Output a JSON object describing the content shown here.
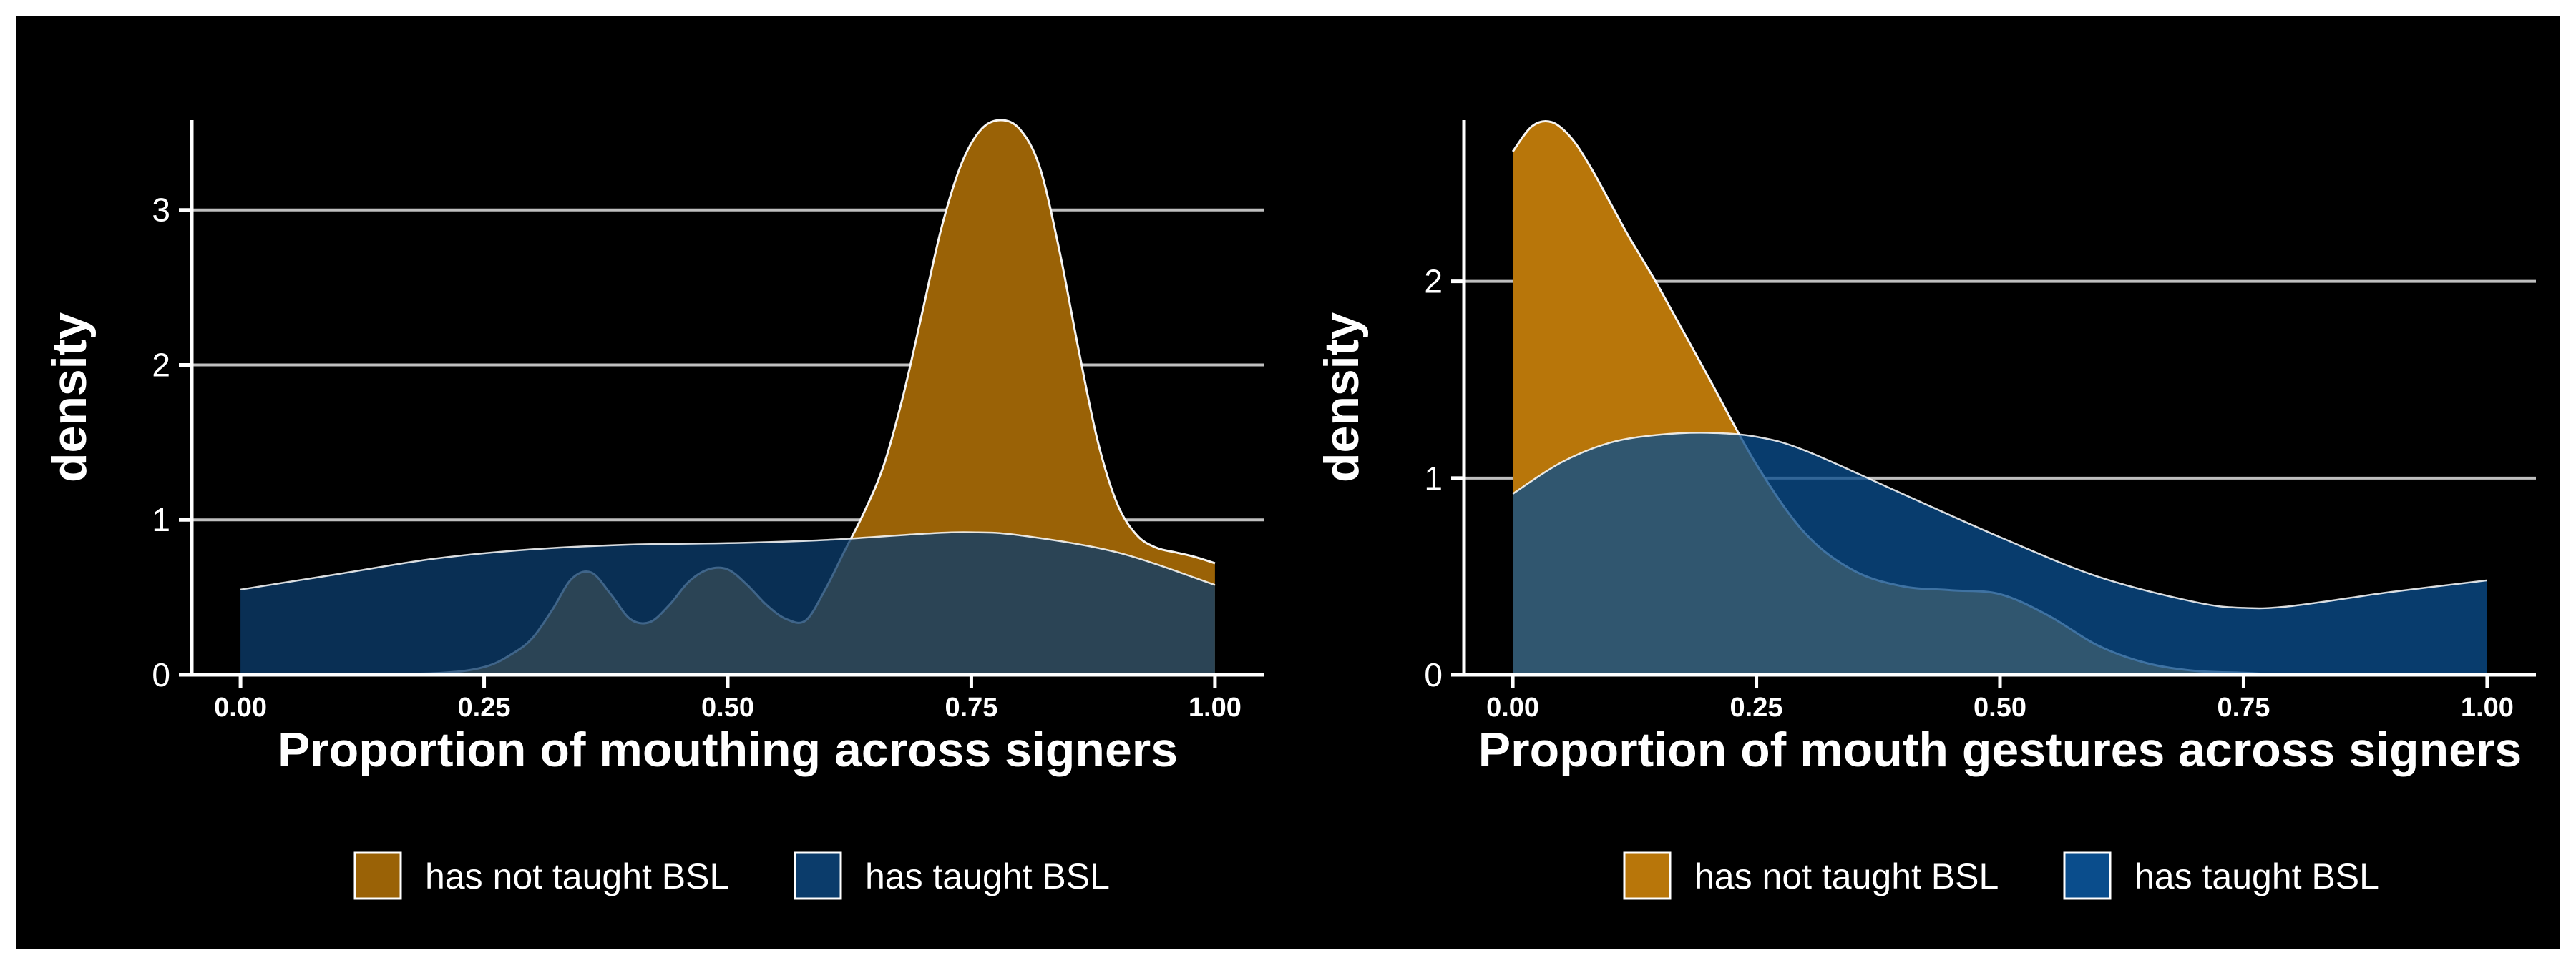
{
  "colors": {
    "frame": "#ffffff",
    "background": "#000000",
    "grid": "#bfbfbf",
    "axis": "#ffffff",
    "text": "#ffffff"
  },
  "chart_data": [
    {
      "type": "area",
      "subtype": "density",
      "xlabel": "Proportion of mouthing across signers",
      "ylabel": "density",
      "xlim": [
        -0.05,
        1.05
      ],
      "ylim": [
        0,
        3.58
      ],
      "xticks": [
        0,
        0.25,
        0.5,
        0.75,
        1
      ],
      "xtick_labels": [
        "0.00",
        "0.25",
        "0.50",
        "0.75",
        "1.00"
      ],
      "yticks": [
        0,
        1,
        2,
        3
      ],
      "ytick_labels": [
        "0",
        "1",
        "2",
        "3"
      ],
      "grid": "horizontal",
      "legend_position": "bottom",
      "series": [
        {
          "name": "has not taught BSL",
          "color": "#9a6206",
          "x": [
            0,
            0.1,
            0.2,
            0.25,
            0.28,
            0.3,
            0.32,
            0.34,
            0.36,
            0.38,
            0.4,
            0.42,
            0.44,
            0.46,
            0.48,
            0.5,
            0.52,
            0.54,
            0.56,
            0.58,
            0.6,
            0.62,
            0.64,
            0.66,
            0.68,
            0.7,
            0.72,
            0.74,
            0.76,
            0.78,
            0.8,
            0.82,
            0.84,
            0.86,
            0.88,
            0.9,
            0.92,
            0.94,
            0.96,
            0.98,
            1.0
          ],
          "values": [
            0,
            0,
            0.01,
            0.05,
            0.14,
            0.24,
            0.42,
            0.62,
            0.66,
            0.52,
            0.36,
            0.34,
            0.45,
            0.6,
            0.68,
            0.68,
            0.58,
            0.45,
            0.36,
            0.35,
            0.55,
            0.8,
            1.05,
            1.35,
            1.8,
            2.35,
            2.9,
            3.3,
            3.52,
            3.58,
            3.52,
            3.28,
            2.75,
            2.1,
            1.5,
            1.1,
            0.9,
            0.82,
            0.79,
            0.76,
            0.72
          ]
        },
        {
          "name": "has taught BSL",
          "color": "#0b3c6b",
          "x": [
            0,
            0.1,
            0.2,
            0.3,
            0.4,
            0.5,
            0.6,
            0.7,
            0.75,
            0.8,
            0.9,
            1.0
          ],
          "values": [
            0.55,
            0.65,
            0.75,
            0.81,
            0.84,
            0.85,
            0.87,
            0.91,
            0.92,
            0.9,
            0.79,
            0.58
          ]
        }
      ]
    },
    {
      "type": "area",
      "subtype": "density",
      "xlabel": "Proportion of mouth gestures across signers",
      "ylabel": "density",
      "xlim": [
        -0.05,
        1.05
      ],
      "ylim": [
        0,
        2.82
      ],
      "xticks": [
        0,
        0.25,
        0.5,
        0.75,
        1
      ],
      "xtick_labels": [
        "0.00",
        "0.25",
        "0.50",
        "0.75",
        "1.00"
      ],
      "yticks": [
        0,
        1,
        2
      ],
      "ytick_labels": [
        "0",
        "1",
        "2"
      ],
      "grid": "horizontal",
      "legend_position": "bottom",
      "series": [
        {
          "name": "has not taught BSL",
          "color": "#b8760a",
          "x": [
            0,
            0.02,
            0.04,
            0.06,
            0.08,
            0.1,
            0.12,
            0.15,
            0.2,
            0.25,
            0.3,
            0.35,
            0.4,
            0.45,
            0.5,
            0.55,
            0.6,
            0.65,
            0.7,
            0.75,
            0.8,
            0.9,
            1.0
          ],
          "values": [
            2.66,
            2.79,
            2.81,
            2.73,
            2.58,
            2.4,
            2.22,
            1.97,
            1.52,
            1.07,
            0.72,
            0.53,
            0.45,
            0.43,
            0.41,
            0.3,
            0.15,
            0.06,
            0.02,
            0.01,
            0,
            0,
            0
          ]
        },
        {
          "name": "has taught BSL",
          "color": "#0a4d8c",
          "x": [
            0,
            0.05,
            0.1,
            0.15,
            0.2,
            0.25,
            0.3,
            0.4,
            0.5,
            0.6,
            0.7,
            0.75,
            0.8,
            0.9,
            1.0
          ],
          "values": [
            0.92,
            1.08,
            1.18,
            1.22,
            1.23,
            1.21,
            1.14,
            0.92,
            0.7,
            0.5,
            0.37,
            0.34,
            0.35,
            0.42,
            0.48
          ]
        }
      ]
    }
  ]
}
